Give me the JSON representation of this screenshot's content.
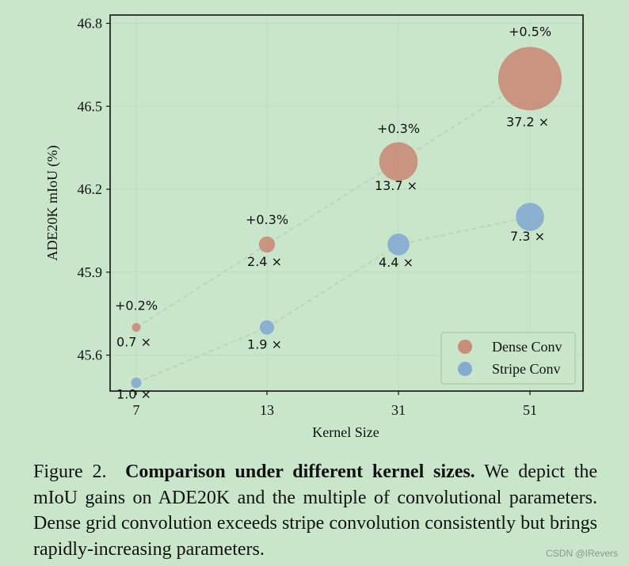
{
  "chart_data": {
    "type": "scatter",
    "xlabel": "Kernel Size",
    "ylabel": "ADE20K mIoU (%)",
    "categories": [
      "7",
      "13",
      "31",
      "51"
    ],
    "yticks": [
      "45.6",
      "45.9",
      "46.2",
      "46.5",
      "46.8"
    ],
    "ylim": [
      45.47,
      46.83
    ],
    "grid": true,
    "legend_position": "bottom-right",
    "series": [
      {
        "name": "Dense Conv",
        "color": "#c98d79",
        "values": [
          45.7,
          46.0,
          46.3,
          46.6
        ],
        "multipliers": [
          "0.7 ×",
          "2.4 ×",
          "13.7 ×",
          "37.2 ×"
        ],
        "size_factor": [
          0.7,
          2.4,
          13.7,
          37.2
        ],
        "gains": [
          "+0.2%",
          "+0.3%",
          "+0.3%",
          "+0.5%"
        ]
      },
      {
        "name": "Stripe Conv",
        "color": "#86abd0",
        "values": [
          45.5,
          45.7,
          46.0,
          46.1
        ],
        "multipliers": [
          "1.0 ×",
          "1.9 ×",
          "4.4 ×",
          "7.3 ×"
        ],
        "size_factor": [
          1.0,
          1.9,
          4.4,
          7.3
        ]
      }
    ]
  },
  "caption": {
    "label": "Figure 2.",
    "bold": "Comparison under different kernel sizes.",
    "text": "We depict the mIoU gains on ADE20K and the multiple of convolutional parameters. Dense grid convolution exceeds stripe convolution consistently but brings rapidly-increasing parameters."
  },
  "watermark": "CSDN @IRevers"
}
